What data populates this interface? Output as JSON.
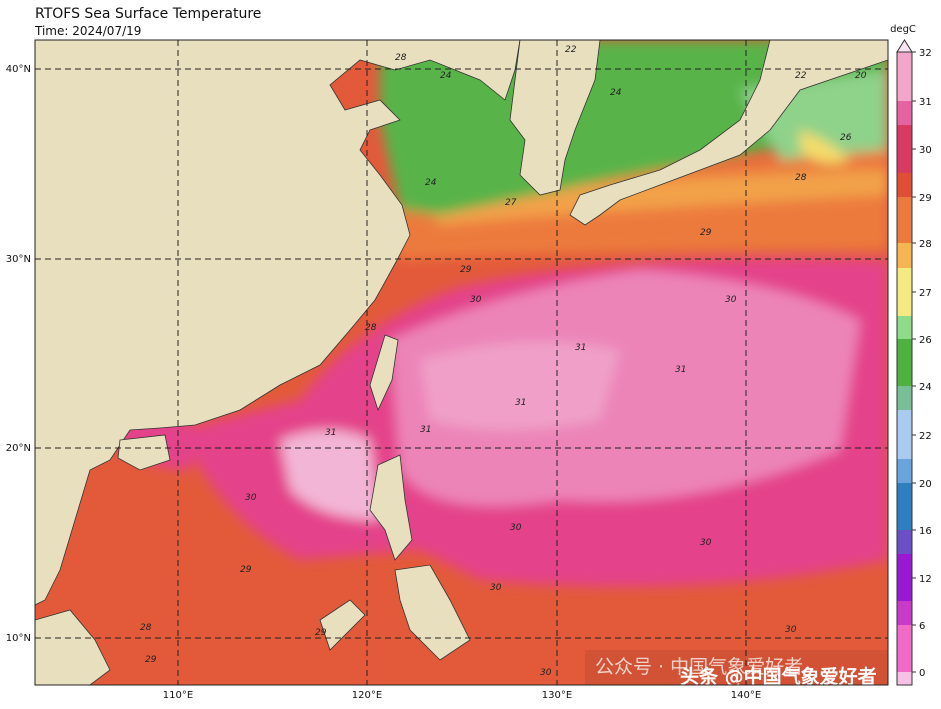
{
  "header": {
    "title": "RTOFS Sea Surface Temperature",
    "time": "Time: 2024/07/19"
  },
  "map": {
    "lon_labels": [
      "110°E",
      "120°E",
      "130°E",
      "140°E"
    ],
    "lat_labels": [
      "40°N",
      "30°N",
      "20°N",
      "10°N"
    ],
    "contour_labels": [
      "28",
      "24",
      "24",
      "22",
      "24",
      "22",
      "20",
      "26",
      "27",
      "28",
      "29",
      "29",
      "28",
      "30",
      "30",
      "31",
      "31",
      "31",
      "31",
      "31",
      "30",
      "30",
      "30",
      "29",
      "29",
      "28",
      "30",
      "30",
      "29",
      "30"
    ]
  },
  "colorbar": {
    "label": "degC",
    "ticks": [
      "32",
      "31",
      "30",
      "29",
      "28",
      "27",
      "26",
      "24",
      "22",
      "20",
      "16",
      "12",
      "6",
      "0"
    ]
  },
  "watermark": {
    "left": "公众号 · 中国气象爱好者",
    "right": "头条 @中国气象爱好者"
  }
}
